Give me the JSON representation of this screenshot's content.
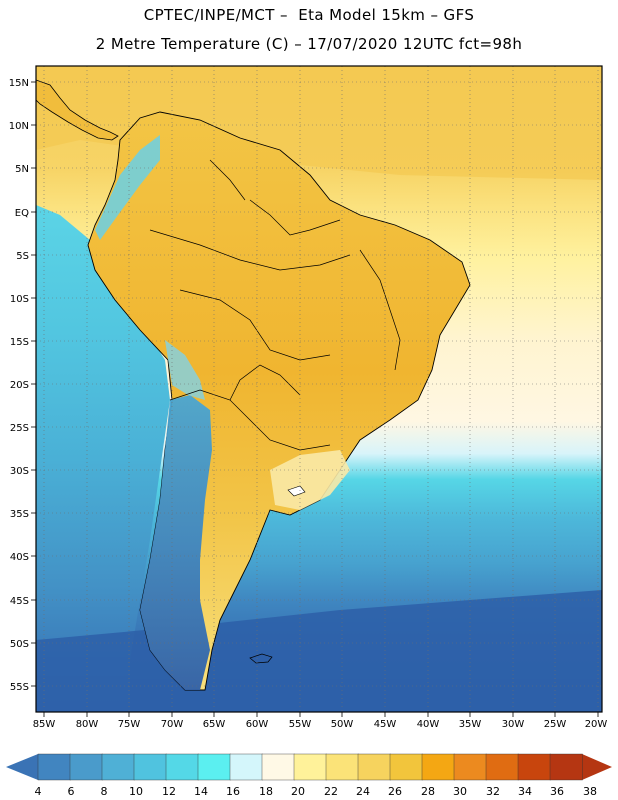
{
  "header": {
    "line1": "CPTEC/INPE/MCT –  Eta Model 15km – GFS",
    "line2": "2 Metre Temperature (C) – 17/07/2020 12UTC fct=98h"
  },
  "axes": {
    "lat_labels": [
      "15N",
      "10N",
      "5N",
      "EQ",
      "5S",
      "10S",
      "15S",
      "20S",
      "25S",
      "30S",
      "35S",
      "40S",
      "45S",
      "50S",
      "55S"
    ],
    "lon_labels": [
      "85W",
      "80W",
      "75W",
      "70W",
      "65W",
      "60W",
      "55W",
      "50W",
      "45W",
      "40W",
      "35W",
      "30W",
      "25W",
      "20W"
    ]
  },
  "colorbar": {
    "labels": [
      "4",
      "6",
      "8",
      "10",
      "12",
      "14",
      "16",
      "18",
      "20",
      "22",
      "24",
      "26",
      "28",
      "30",
      "32",
      "34",
      "36",
      "38"
    ],
    "colors": [
      "#3a73b5",
      "#4185c0",
      "#4a9bcb",
      "#4fb0d6",
      "#50c3df",
      "#54d8e7",
      "#5beff0",
      "#d4f6fb",
      "#fff9e6",
      "#fff29a",
      "#fbe378",
      "#f6d35e",
      "#f2c53c",
      "#f4a713",
      "#ec8a1f",
      "#e06c12",
      "#c8450d",
      "#b53612"
    ]
  }
}
